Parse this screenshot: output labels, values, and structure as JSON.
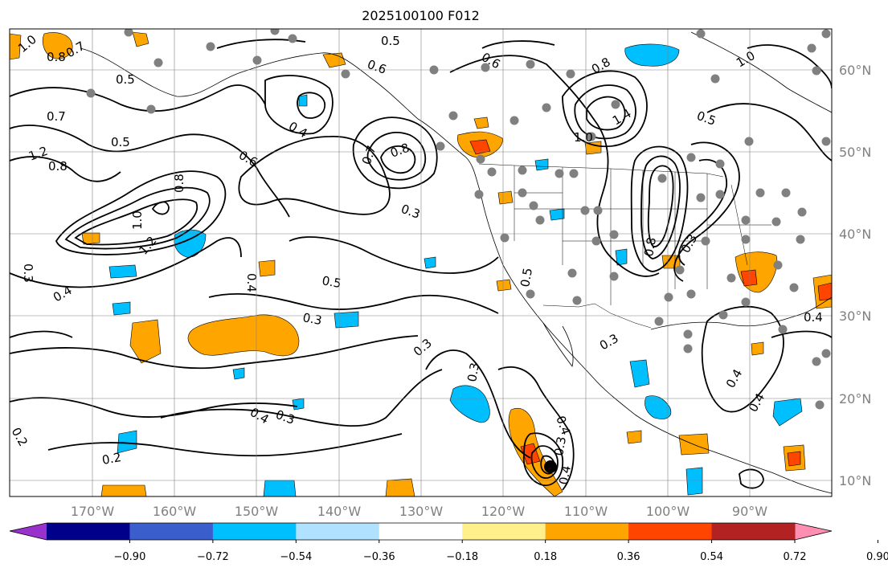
{
  "title": "2025100100 F012",
  "lon_labels": [
    "170°W",
    "160°W",
    "150°W",
    "140°W",
    "130°W",
    "120°W",
    "110°W",
    "100°W",
    "90°W"
  ],
  "lat_labels": [
    "60°N",
    "50°N",
    "40°N",
    "30°N",
    "20°N",
    "10°N"
  ],
  "colorbar": {
    "colors": [
      "#9932cc",
      "#00008b",
      "#3a5fcd",
      "#00bfff",
      "#b0e2ff",
      "#ffffff",
      "#fff08c",
      "#ffa500",
      "#ff4500",
      "#b22222",
      "#ff8fb1"
    ],
    "tick_labels": [
      "−0.90",
      "−0.72",
      "−0.54",
      "−0.36",
      "−0.18",
      "0.18",
      "0.36",
      "0.54",
      "0.72",
      "0.90"
    ]
  },
  "contour_labels": [
    "1.0",
    "0.8",
    "0.7",
    "0.5",
    "0.7",
    "0.5",
    "1.2",
    "0.8",
    "0.8",
    "1.0",
    "1.2",
    "0.3",
    "0.4",
    "0.6",
    "0.4",
    "0.7",
    "0.8",
    "0.6",
    "0.5",
    "0.3",
    "0.5",
    "0.3",
    "0.4",
    "0.3",
    "0.4",
    "0.3",
    "0.2",
    "0.2",
    "0.5",
    "0.3",
    "0.4",
    "0.3",
    "0.4",
    "0.8",
    "1.4",
    "1.0",
    "0.8",
    "0.5",
    "0.4",
    "0.3",
    "0.3",
    "0.4",
    "0.4",
    "0.6",
    "1.0"
  ],
  "colors": {
    "contour": "#000000",
    "grid": "#808080",
    "station_dot": "#808080"
  }
}
